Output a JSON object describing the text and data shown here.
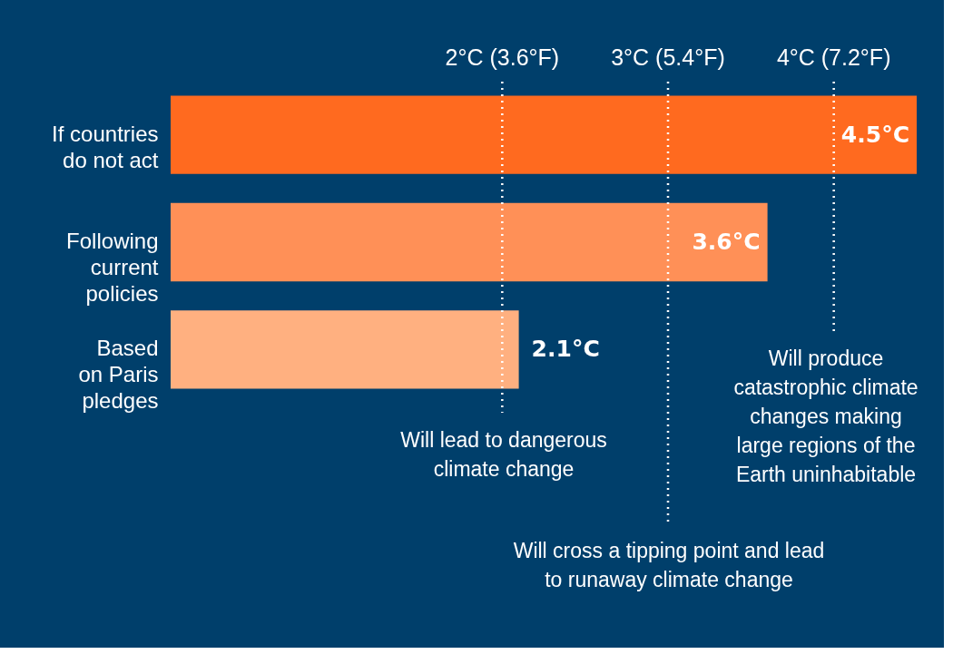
{
  "chart_data": {
    "type": "bar",
    "orientation": "horizontal",
    "categories": [
      "If countries\ndo not act",
      "Following\ncurrent\npolicies",
      "Based\non Paris\npledges"
    ],
    "values": [
      4.5,
      3.6,
      2.1
    ],
    "colors": [
      "#ff6a1f",
      "#ff9057",
      "#ffb080"
    ],
    "value_labels": [
      "4.5°C",
      "3.6°C",
      "2.1°C"
    ],
    "xlim": [
      0,
      4.5
    ],
    "tick_labels": "y",
    "ref_lines": [
      {
        "axis": "x",
        "value": 2,
        "label": "2°C (3.6°F)",
        "color": "#ffffff",
        "line_style": "dotted"
      },
      {
        "axis": "x",
        "value": 3,
        "label": "3°C (5.4°F)",
        "color": "#ffffff",
        "line_style": "dotted"
      },
      {
        "axis": "x",
        "value": 4,
        "label": "4°C (7.2°F)",
        "color": "#ffffff",
        "line_style": "dotted"
      }
    ],
    "annotations": [
      "Will lead to dangerous\nclimate change",
      "Will cross a tipping point and lead\nto runaway climate change",
      "Will produce\ncatastrophic climate\nchanges making\nlarge regions of the\nEarth uninhabitable"
    ]
  }
}
